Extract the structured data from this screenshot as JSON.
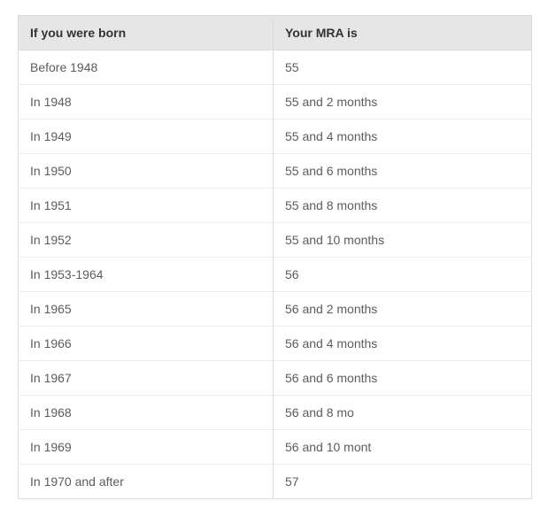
{
  "table": {
    "headers": {
      "born": "If you were born",
      "mra": "Your MRA is"
    },
    "rows": [
      {
        "born": "Before 1948",
        "mra": "55"
      },
      {
        "born": "In 1948",
        "mra": "55 and 2 months"
      },
      {
        "born": "In 1949",
        "mra": "55 and 4 months"
      },
      {
        "born": "In 1950",
        "mra": "55 and 6 months"
      },
      {
        "born": "In 1951",
        "mra": "55 and 8 months"
      },
      {
        "born": "In 1952",
        "mra": "55 and 10 months"
      },
      {
        "born": "In 1953-1964",
        "mra": "56"
      },
      {
        "born": "In 1965",
        "mra": "56 and 2 months"
      },
      {
        "born": "In 1966",
        "mra": "56 and 4 months"
      },
      {
        "born": "In 1967",
        "mra": "56 and 6 months"
      },
      {
        "born": "In 1968",
        "mra": "56 and 8 mo"
      },
      {
        "born": "In 1969",
        "mra": "56 and 10 mont"
      },
      {
        "born": "In 1970 and after",
        "mra": "57"
      }
    ],
    "colors": {
      "header_bg": "#e6e6e6",
      "header_text": "#333333",
      "body_text": "#5c5c5c",
      "outer_border": "#dcdcdc",
      "row_border": "#ececec"
    }
  },
  "chart_data": {
    "type": "table",
    "title": "",
    "columns": [
      "If you were born",
      "Your MRA is"
    ],
    "rows": [
      [
        "Before 1948",
        "55"
      ],
      [
        "In 1948",
        "55 and 2 months"
      ],
      [
        "In 1949",
        "55 and 4 months"
      ],
      [
        "In 1950",
        "55 and 6 months"
      ],
      [
        "In 1951",
        "55 and 8 months"
      ],
      [
        "In 1952",
        "55 and 10 months"
      ],
      [
        "In 1953-1964",
        "56"
      ],
      [
        "In 1965",
        "56 and 2 months"
      ],
      [
        "In 1966",
        "56 and 4 months"
      ],
      [
        "In 1967",
        "56 and 6 months"
      ],
      [
        "In 1968",
        "56 and 8 mo"
      ],
      [
        "In 1969",
        "56 and 10 mont"
      ],
      [
        "In 1970 and after",
        "57"
      ]
    ]
  }
}
